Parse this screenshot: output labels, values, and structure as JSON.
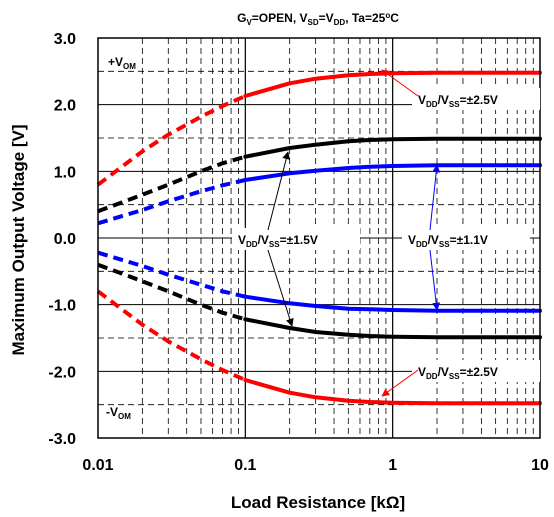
{
  "chart_data": {
    "type": "line",
    "title": {
      "parts": [
        "G",
        "V",
        "=OPEN, V",
        "SD",
        "=V",
        "DD",
        ", Ta=25",
        "o",
        "C"
      ]
    },
    "xlabel": "Load Resistance [kΩ]",
    "ylabel": "Maximum Output Voltage [V]",
    "xscale": "log",
    "xlim": [
      0.01,
      10
    ],
    "ylim": [
      -3.0,
      3.0
    ],
    "grid": true,
    "x_ticks": [
      "0.01",
      "0.1",
      "1",
      "10"
    ],
    "y_ticks": [
      "3.0",
      "2.0",
      "1.0",
      "0.0",
      "-1.0",
      "-2.0",
      "-3.0"
    ],
    "x": [
      0.01,
      0.02,
      0.03,
      0.05,
      0.07,
      0.1,
      0.2,
      0.3,
      0.5,
      0.7,
      1,
      2,
      3,
      5,
      7,
      10
    ],
    "series": [
      {
        "group": "±2.5V",
        "sign": "positive",
        "color": "#ff0000",
        "values": [
          0.8,
          1.3,
          1.55,
          1.82,
          1.98,
          2.13,
          2.32,
          2.39,
          2.44,
          2.46,
          2.47,
          2.48,
          2.48,
          2.48,
          2.48,
          2.48
        ]
      },
      {
        "group": "±1.5V",
        "sign": "positive",
        "color": "#000000",
        "values": [
          0.4,
          0.65,
          0.8,
          1.0,
          1.12,
          1.22,
          1.35,
          1.4,
          1.45,
          1.47,
          1.48,
          1.49,
          1.49,
          1.49,
          1.49,
          1.49
        ]
      },
      {
        "group": "±1.1V",
        "sign": "positive",
        "color": "#0000ff",
        "values": [
          0.22,
          0.42,
          0.55,
          0.7,
          0.79,
          0.87,
          0.97,
          1.01,
          1.05,
          1.07,
          1.08,
          1.09,
          1.09,
          1.09,
          1.09,
          1.09
        ]
      },
      {
        "group": "±1.1V",
        "sign": "negative",
        "color": "#0000ff",
        "values": [
          -0.22,
          -0.42,
          -0.55,
          -0.7,
          -0.8,
          -0.88,
          -0.98,
          -1.02,
          -1.06,
          -1.07,
          -1.08,
          -1.09,
          -1.09,
          -1.09,
          -1.09,
          -1.09
        ]
      },
      {
        "group": "±1.5V",
        "sign": "negative",
        "color": "#000000",
        "values": [
          -0.4,
          -0.65,
          -0.8,
          -1.0,
          -1.12,
          -1.22,
          -1.35,
          -1.41,
          -1.45,
          -1.47,
          -1.48,
          -1.49,
          -1.49,
          -1.49,
          -1.49,
          -1.49
        ]
      },
      {
        "group": "±2.5V",
        "sign": "negative",
        "color": "#ff0000",
        "values": [
          -0.8,
          -1.3,
          -1.55,
          -1.82,
          -1.98,
          -2.13,
          -2.32,
          -2.39,
          -2.44,
          -2.46,
          -2.47,
          -2.48,
          -2.48,
          -2.48,
          -2.48,
          -2.48
        ]
      }
    ],
    "dashed_until_x": 0.1,
    "annotations": {
      "vom_pos": [
        "+V",
        "OM"
      ],
      "vom_neg": [
        "-V",
        "OM"
      ],
      "lbl_25_top": [
        "V",
        "DD",
        "/V",
        "SS",
        "=±2.5V"
      ],
      "lbl_15": [
        "V",
        "DD",
        "/V",
        "SS",
        "=±1.5V"
      ],
      "lbl_11": [
        "V",
        "DD",
        "/V",
        "SS",
        "=±1.1V"
      ],
      "lbl_25_bot": [
        "V",
        "DD",
        "/V",
        "SS",
        "=±2.5V"
      ]
    }
  }
}
